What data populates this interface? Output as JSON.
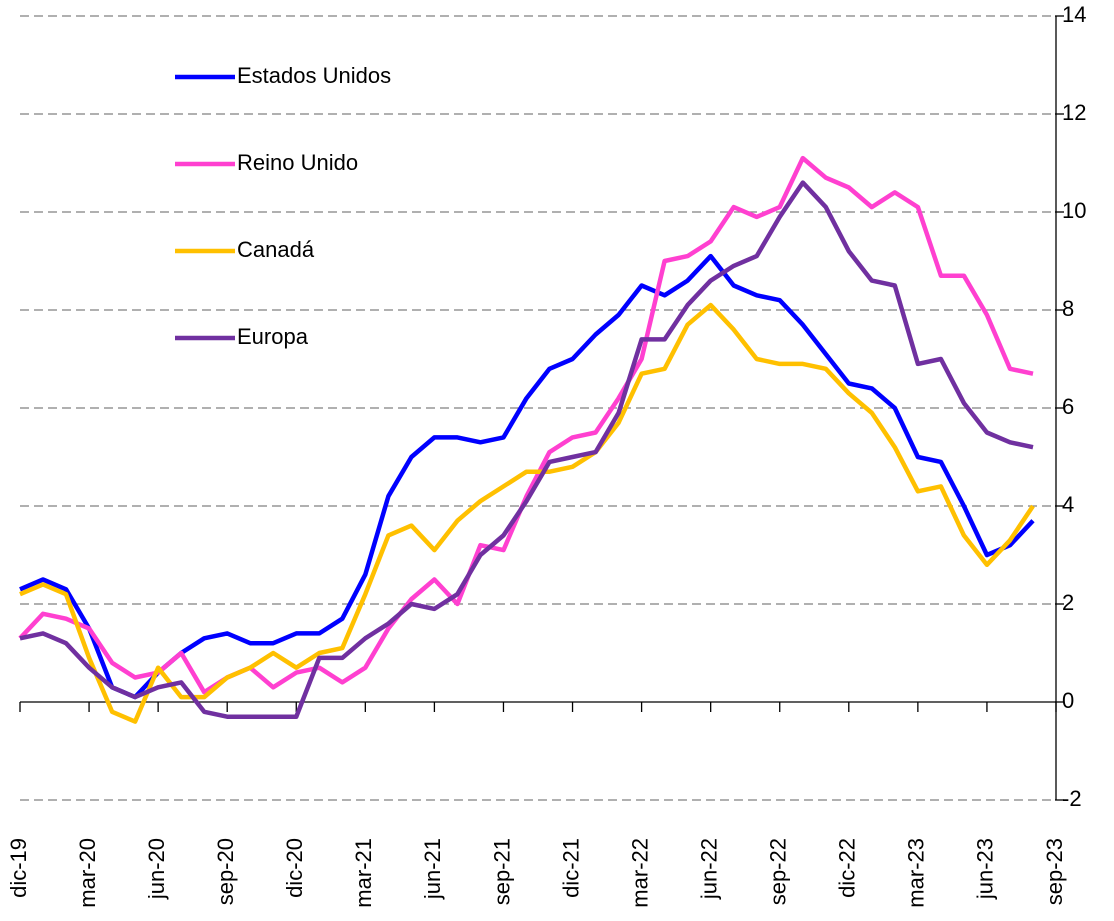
{
  "chart_data": {
    "type": "line",
    "categories": [
      "dic-19",
      null,
      null,
      "mar-20",
      null,
      null,
      "jun-20",
      null,
      null,
      "sep-20",
      null,
      null,
      "dic-20",
      null,
      null,
      "mar-21",
      null,
      null,
      "jun-21",
      null,
      null,
      "sep-21",
      null,
      null,
      "dic-21",
      null,
      null,
      "mar-22",
      null,
      null,
      "jun-22",
      null,
      null,
      "sep-22",
      null,
      null,
      "dic-22",
      null,
      null,
      "mar-23",
      null,
      null,
      "jun-23",
      null,
      null,
      "sep-23"
    ],
    "series": [
      {
        "name": "Estados Unidos",
        "color": "#0000ff",
        "values": [
          2.3,
          2.5,
          2.3,
          1.5,
          0.3,
          0.1,
          0.6,
          1.0,
          1.3,
          1.4,
          1.2,
          1.2,
          1.4,
          1.4,
          1.7,
          2.6,
          4.2,
          5.0,
          5.4,
          5.4,
          5.3,
          5.4,
          6.2,
          6.8,
          7.0,
          7.5,
          7.9,
          8.5,
          8.3,
          8.6,
          9.1,
          8.5,
          8.3,
          8.2,
          7.7,
          7.1,
          6.5,
          6.4,
          6.0,
          5.0,
          4.9,
          4.0,
          3.0,
          3.2,
          3.7,
          null
        ]
      },
      {
        "name": "Reino Unido",
        "color": "#ff40d0",
        "values": [
          1.3,
          1.8,
          1.7,
          1.5,
          0.8,
          0.5,
          0.6,
          1.0,
          0.2,
          0.5,
          0.7,
          0.3,
          0.6,
          0.7,
          0.4,
          0.7,
          1.5,
          2.1,
          2.5,
          2.0,
          3.2,
          3.1,
          4.2,
          5.1,
          5.4,
          5.5,
          6.2,
          7.0,
          9.0,
          9.1,
          9.4,
          10.1,
          9.9,
          10.1,
          11.1,
          10.7,
          10.5,
          10.1,
          10.4,
          10.1,
          8.7,
          8.7,
          7.9,
          6.8,
          6.7,
          null
        ]
      },
      {
        "name": "Canadá",
        "color": "#ffc000",
        "values": [
          2.2,
          2.4,
          2.2,
          0.9,
          -0.2,
          -0.4,
          0.7,
          0.1,
          0.1,
          0.5,
          0.7,
          1.0,
          0.7,
          1.0,
          1.1,
          2.2,
          3.4,
          3.6,
          3.1,
          3.7,
          4.1,
          4.4,
          4.7,
          4.7,
          4.8,
          5.1,
          5.7,
          6.7,
          6.8,
          7.7,
          8.1,
          7.6,
          7.0,
          6.9,
          6.9,
          6.8,
          6.3,
          5.9,
          5.2,
          4.3,
          4.4,
          3.4,
          2.8,
          3.3,
          4.0,
          null
        ]
      },
      {
        "name": "Europa",
        "color": "#7030a0",
        "values": [
          1.3,
          1.4,
          1.2,
          0.7,
          0.3,
          0.1,
          0.3,
          0.4,
          -0.2,
          -0.3,
          -0.3,
          -0.3,
          -0.3,
          0.9,
          0.9,
          1.3,
          1.6,
          2.0,
          1.9,
          2.2,
          3.0,
          3.4,
          4.1,
          4.9,
          5.0,
          5.1,
          5.9,
          7.4,
          7.4,
          8.1,
          8.6,
          8.9,
          9.1,
          9.9,
          10.6,
          10.1,
          9.2,
          8.6,
          8.5,
          6.9,
          7.0,
          6.1,
          5.5,
          5.3,
          5.2,
          null
        ]
      }
    ],
    "ylim": [
      -2,
      14
    ],
    "yticks": [
      -2,
      0,
      2,
      4,
      6,
      8,
      10,
      12,
      14
    ],
    "grid": true,
    "legend": "upper left"
  }
}
